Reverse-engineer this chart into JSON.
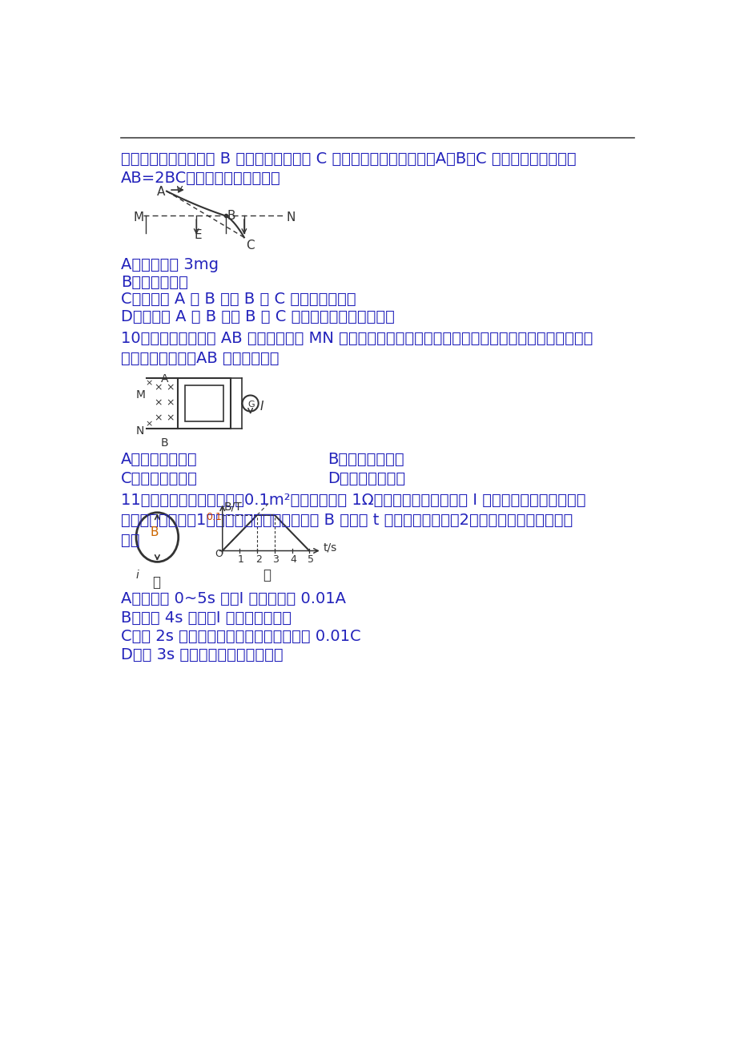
{
  "background_color": "#ffffff",
  "text_color": "#2222bb",
  "line_color": "#333333",
  "para1_line1": "的初速度平抛抛出，从 B 点进入电场，到达 C 点时速度方向恰好水平，A、B、C 三点在同一直线，且",
  "para1_line2": "AB=2BC，如图所示，由此可见",
  "options_q9": [
    "A．电场力为 3mg",
    "B．小球带正电",
    "C．小球从 A 到 B 与从 B 到 C 的运动时间相等",
    "D．小球从 A 到 B 与从 B 到 C 的速度变化量的大小相等"
  ],
  "q10_line1": "10．如图所示，导线 AB 可在平行导轨 MN 上滑动，接触良好，轨道电阵不计，电流计中有如图所示方向",
  "q10_line2": "感应电流通过时，AB 的运动情况是",
  "options_q10_left": [
    "A．向右加速运动",
    "C．向右匀速运动"
  ],
  "options_q10_right": [
    "B．向右减速运动",
    "D．向左减速运动"
  ],
  "q11_line1": "11．单匠线圈所围的面积为0.1m²，线圈电阵为 1Ω，规定线圈中感应电流 I 的正方向从上往下看是顺",
  "q11_line2": "时针方向，如图（1）所示，磁场的磁感应强度 B 随时间 t 的变化规律如图（2）所示，则以下说法正确",
  "q11_line3": "的是",
  "options_q11": [
    "A．在时间 0~5s 内，I 的最大値为 0.01A",
    "B．在第 4s 时刻，I 的方向为逆时针",
    "C．前 2s 内，通过线圈某截面的总电量为 0.01C",
    "D．第 3s 内，线圈的发热功率最大"
  ]
}
